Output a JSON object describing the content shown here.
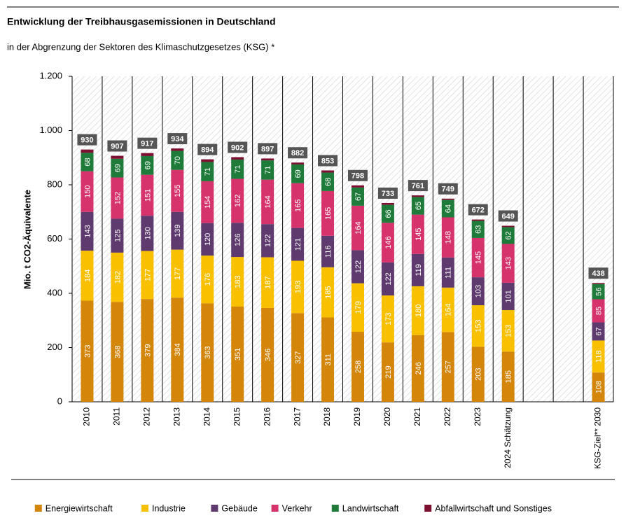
{
  "chart_data": {
    "type": "stacked_bar",
    "title": "Entwicklung der Treibhausgasemissionen  in Deutschland",
    "subtitle": "in der Abgrenzung der Sektoren des Klimaschutzgesetzes (KSG) *",
    "y_label": "Mio. t CO2-Äquivalente",
    "categories": [
      "2010",
      "2011",
      "2012",
      "2013",
      "2014",
      "2015",
      "2016",
      "2017",
      "2018",
      "2019",
      "2020",
      "2021",
      "2022",
      "2023",
      "2024 Schätzung",
      null,
      null,
      "KSG-Ziel** 2030"
    ],
    "series": [
      {
        "name": "Energiewirtschaft",
        "color": "#d4860b",
        "values": [
          373,
          368,
          379,
          384,
          363,
          351,
          346,
          327,
          311,
          258,
          219,
          246,
          257,
          203,
          185,
          null,
          null,
          108
        ]
      },
      {
        "name": "Industrie",
        "color": "#f9c000",
        "values": [
          184,
          182,
          177,
          177,
          176,
          183,
          187,
          193,
          185,
          179,
          173,
          180,
          164,
          153,
          153,
          null,
          null,
          118
        ]
      },
      {
        "name": "Gebäude",
        "color": "#5e3a6e",
        "values": [
          143,
          125,
          130,
          139,
          120,
          126,
          122,
          121,
          116,
          122,
          122,
          119,
          111,
          103,
          101,
          null,
          null,
          67
        ]
      },
      {
        "name": "Verkehr",
        "color": "#d6336c",
        "values": [
          150,
          152,
          151,
          155,
          154,
          162,
          164,
          165,
          165,
          164,
          146,
          145,
          148,
          145,
          143,
          null,
          null,
          85
        ]
      },
      {
        "name": "Landwirtschaft",
        "color": "#1e7b3a",
        "values": [
          68,
          69,
          69,
          70,
          71,
          71,
          71,
          69,
          68,
          67,
          66,
          65,
          64,
          63,
          62,
          null,
          null,
          56
        ]
      },
      {
        "name": "Abfallwirtschaft und Sonstiges",
        "color": "#7b1030",
        "values": [
          12,
          11,
          11,
          9,
          10,
          9,
          7,
          7,
          8,
          8,
          7,
          6,
          5,
          5,
          5,
          null,
          null,
          4
        ]
      }
    ],
    "totals": [
      930,
      907,
      917,
      934,
      894,
      902,
      897,
      882,
      853,
      798,
      733,
      761,
      749,
      672,
      649,
      null,
      null,
      438
    ],
    "data_labels_series": [
      0,
      1,
      2,
      3,
      4
    ],
    "ylim": [
      0,
      1200
    ],
    "yticks": [
      0,
      200,
      400,
      600,
      800,
      {
        "value": 1000,
        "label": "1.000"
      },
      {
        "value": 1200,
        "label": "1.200"
      }
    ],
    "legend": "bottom"
  }
}
